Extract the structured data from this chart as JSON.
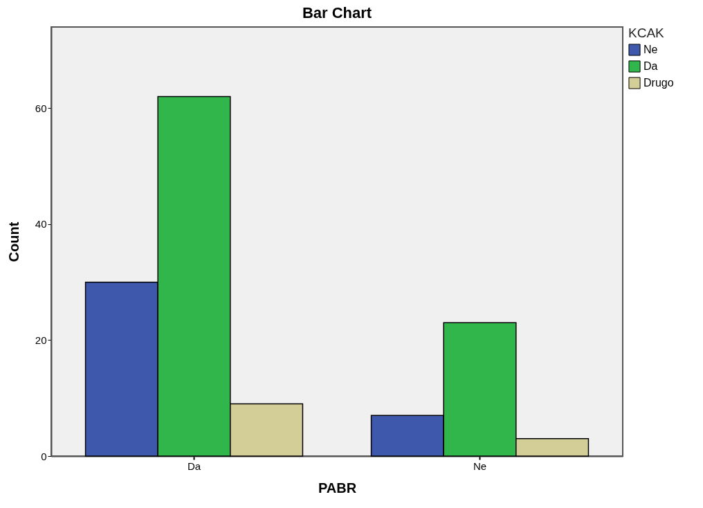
{
  "chart_data": {
    "type": "bar",
    "title": "Bar Chart",
    "xlabel": "PABR",
    "ylabel": "Count",
    "legend_title": "KCAK",
    "categories": [
      "Da",
      "Ne"
    ],
    "series": [
      {
        "name": "Ne",
        "color": "#3e58ac",
        "values": [
          30,
          7
        ]
      },
      {
        "name": "Da",
        "color": "#30b64a",
        "values": [
          62,
          23
        ]
      },
      {
        "name": "Drugo",
        "color": "#d3ce97",
        "values": [
          9,
          3
        ]
      }
    ],
    "ylim": [
      0,
      74
    ],
    "yticks": [
      0,
      20,
      40,
      60
    ],
    "grid": false,
    "legend": "top right"
  }
}
